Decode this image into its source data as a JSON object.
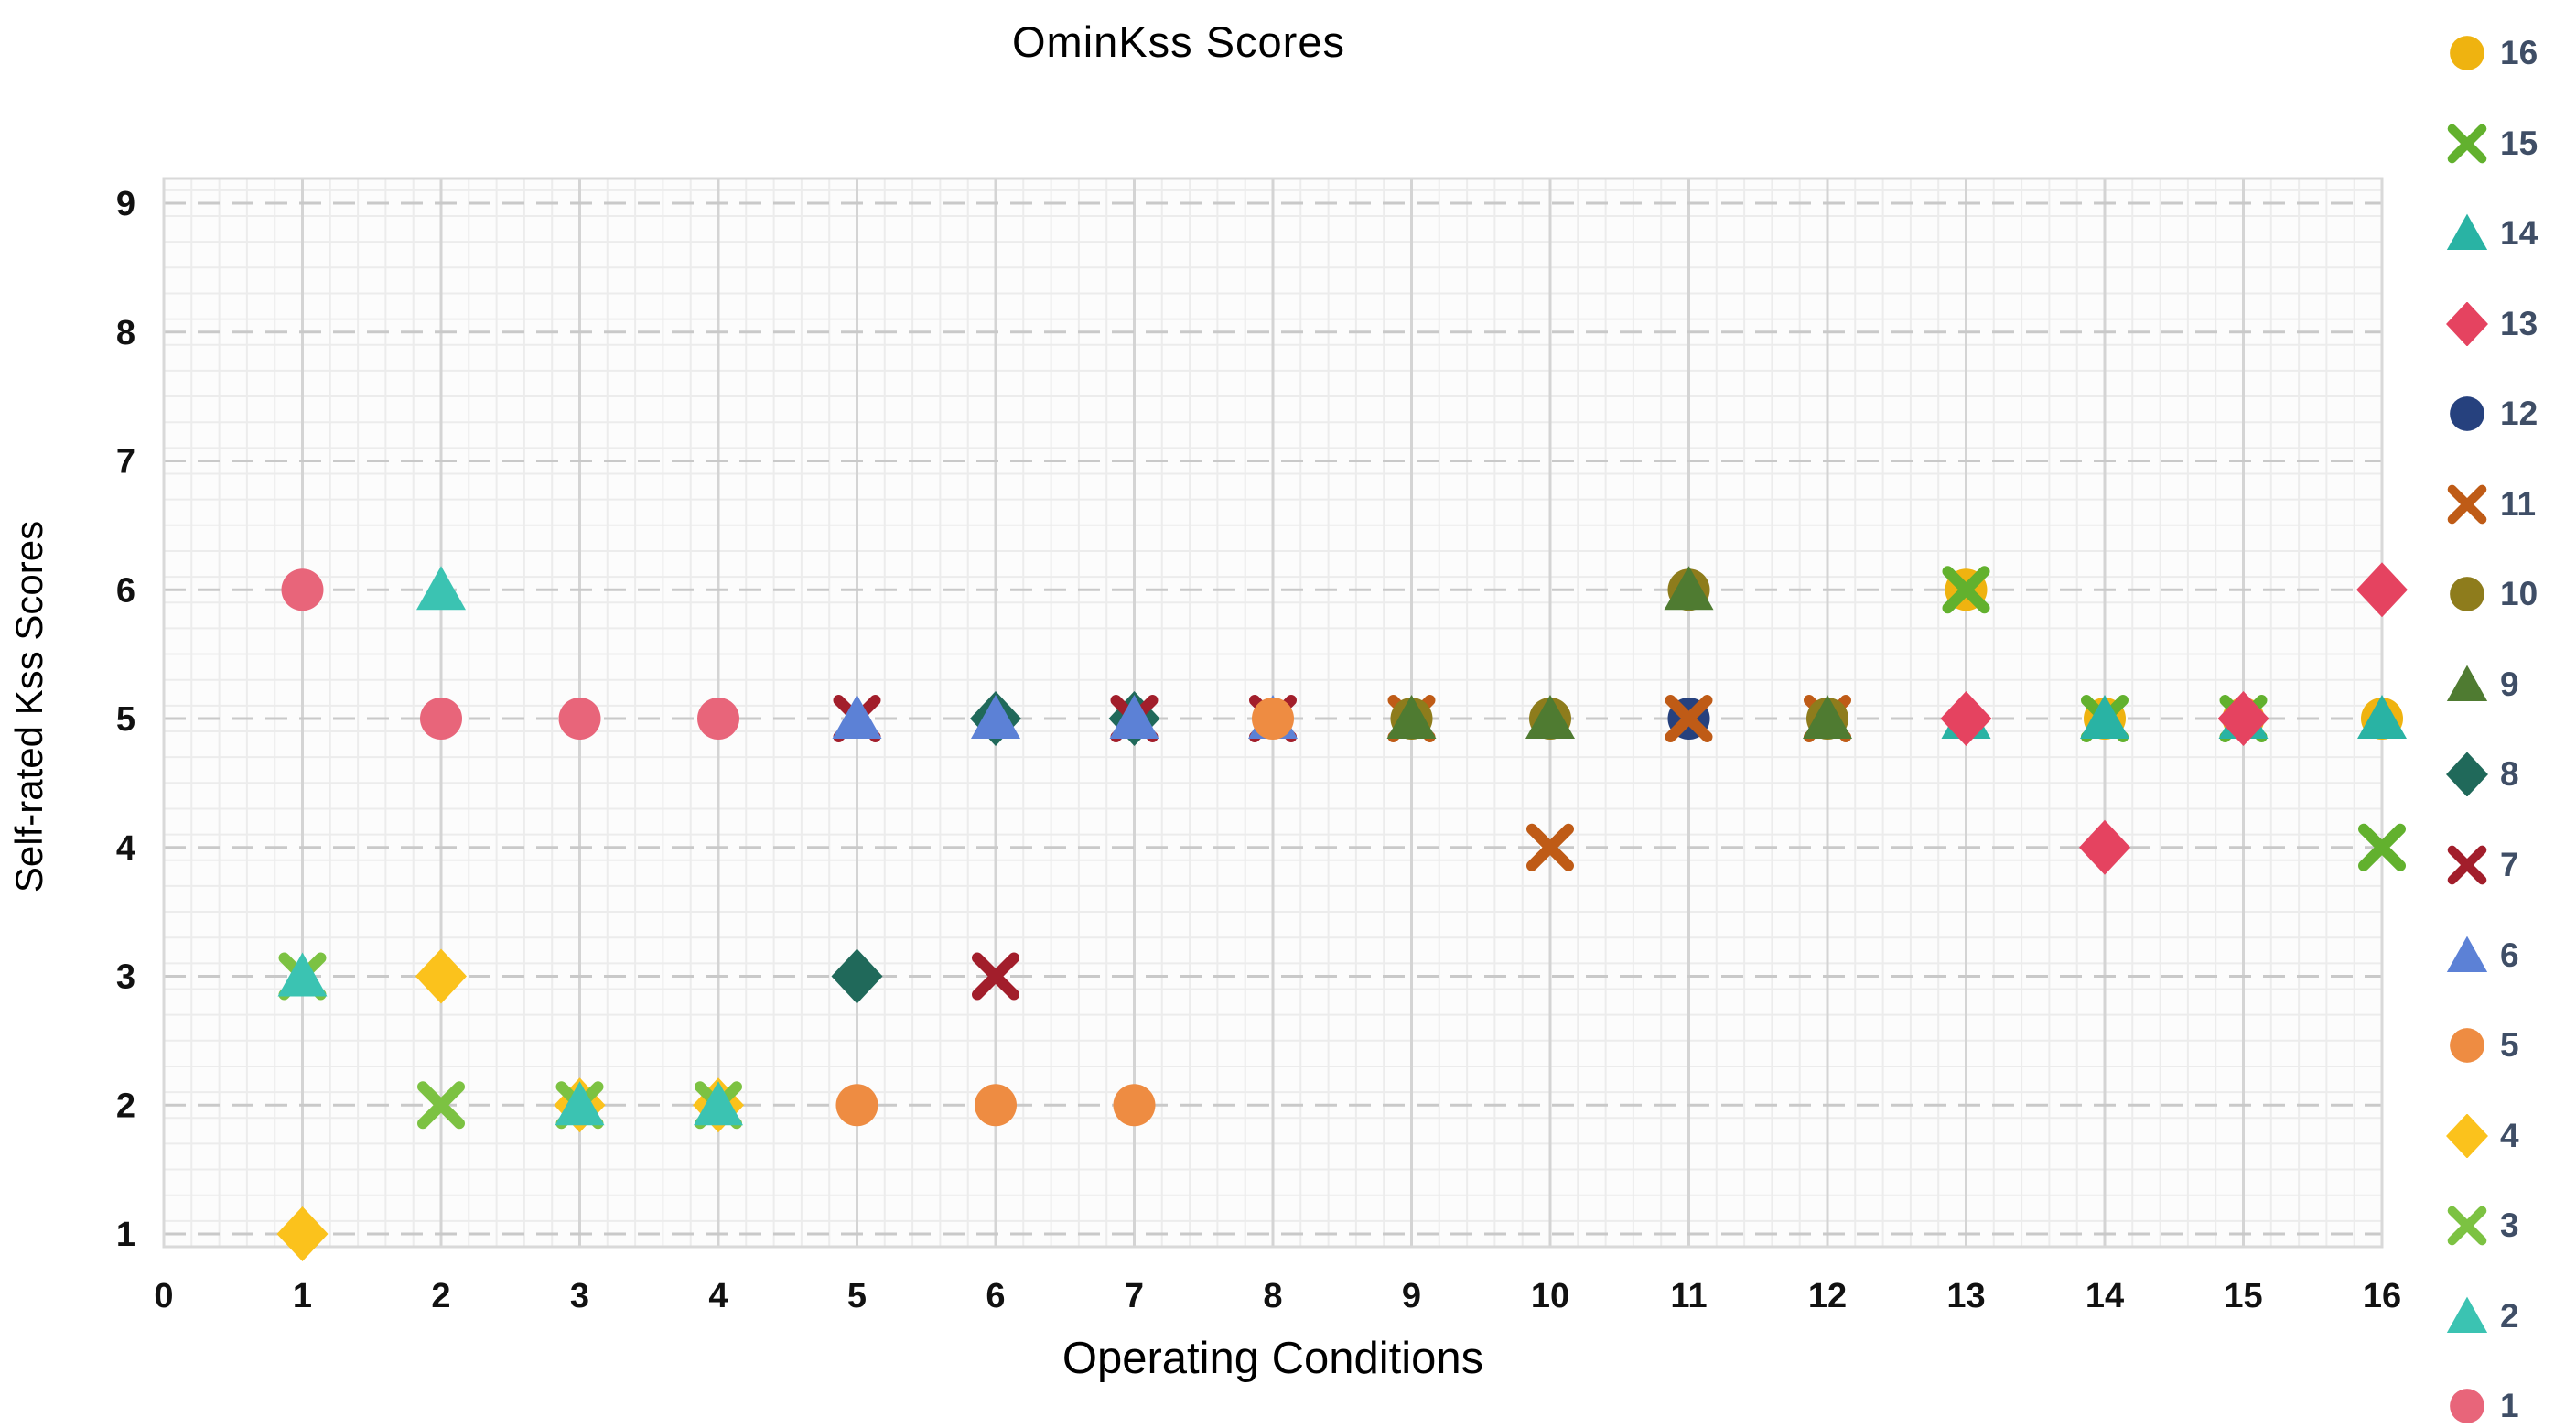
{
  "title": "OminKss Scores",
  "axes": {
    "x": {
      "label": "Operating Conditions",
      "min": 0,
      "max": 16,
      "ticks": [
        "0",
        "1",
        "2",
        "3",
        "4",
        "5",
        "6",
        "7",
        "8",
        "9",
        "10",
        "11",
        "12",
        "13",
        "14",
        "15",
        "16"
      ]
    },
    "y": {
      "label": "Self-rated Kss Scores",
      "min": 1,
      "max": 9,
      "ticks": [
        "1",
        "2",
        "3",
        "4",
        "5",
        "6",
        "7",
        "8",
        "9"
      ]
    }
  },
  "legend": {
    "order": "16 down to 1",
    "position": "right",
    "text_color": "#3F4E66"
  },
  "style": {
    "plot_bg": "#FCFCFC",
    "minor_grid": "#ECECEC",
    "major_grid_v": "#D4D4D4",
    "major_grid_h": "#C9C9C9",
    "border": "#D9D9D9",
    "tick_label_color": "#111111"
  },
  "chart_data": {
    "type": "scatter",
    "title": "OminKss Scores",
    "xlabel": "Operating Conditions",
    "ylabel": "Self-rated Kss Scores",
    "xlim": [
      0,
      16
    ],
    "ylim": [
      1,
      9
    ],
    "grid": "minor 0.2 steps; solid vertical majors; dashed horizontal majors",
    "legend_position": "right",
    "draw_order": "series 16 first, series 1 last (low numbers on top)",
    "series": [
      {
        "name": "1",
        "marker": "circle",
        "color": "#E8657A",
        "points": [
          [
            1,
            6
          ],
          [
            2,
            5
          ],
          [
            3,
            5
          ],
          [
            4,
            5
          ]
        ]
      },
      {
        "name": "2",
        "marker": "triangle",
        "color": "#3BC3B2",
        "points": [
          [
            1,
            3
          ],
          [
            2,
            6
          ],
          [
            3,
            2
          ],
          [
            4,
            2
          ]
        ]
      },
      {
        "name": "3",
        "marker": "x",
        "color": "#7CC242",
        "points": [
          [
            1,
            3
          ],
          [
            2,
            2
          ],
          [
            3,
            2
          ],
          [
            4,
            2
          ]
        ]
      },
      {
        "name": "4",
        "marker": "diamond",
        "color": "#FBC21C",
        "points": [
          [
            1,
            1
          ],
          [
            2,
            3
          ],
          [
            3,
            2
          ],
          [
            4,
            2
          ]
        ]
      },
      {
        "name": "5",
        "marker": "circle",
        "color": "#EE8C42",
        "points": [
          [
            5,
            2
          ],
          [
            6,
            2
          ],
          [
            7,
            2
          ],
          [
            8,
            5
          ]
        ]
      },
      {
        "name": "6",
        "marker": "triangle",
        "color": "#5C81D6",
        "points": [
          [
            5,
            5
          ],
          [
            6,
            5
          ],
          [
            7,
            5
          ],
          [
            8,
            5
          ]
        ]
      },
      {
        "name": "7",
        "marker": "x",
        "color": "#A21E2B",
        "points": [
          [
            5,
            5
          ],
          [
            6,
            3
          ],
          [
            7,
            5
          ],
          [
            8,
            5
          ]
        ]
      },
      {
        "name": "8",
        "marker": "diamond",
        "color": "#20695A",
        "points": [
          [
            5,
            3
          ],
          [
            6,
            5
          ],
          [
            7,
            5
          ]
        ]
      },
      {
        "name": "9",
        "marker": "triangle",
        "color": "#4F7B31",
        "points": [
          [
            9,
            5
          ],
          [
            10,
            5
          ],
          [
            11,
            6
          ],
          [
            12,
            5
          ]
        ]
      },
      {
        "name": "10",
        "marker": "circle",
        "color": "#8E7C1C",
        "points": [
          [
            9,
            5
          ],
          [
            10,
            5
          ],
          [
            11,
            6
          ],
          [
            12,
            5
          ]
        ]
      },
      {
        "name": "11",
        "marker": "x",
        "color": "#BF5B16",
        "points": [
          [
            9,
            5
          ],
          [
            10,
            4
          ],
          [
            11,
            5
          ],
          [
            12,
            5
          ]
        ]
      },
      {
        "name": "12",
        "marker": "circle",
        "color": "#26417E",
        "points": [
          [
            11,
            5
          ]
        ]
      },
      {
        "name": "13",
        "marker": "diamond",
        "color": "#E54360",
        "points": [
          [
            13,
            5
          ],
          [
            14,
            4
          ],
          [
            15,
            5
          ],
          [
            16,
            6
          ]
        ]
      },
      {
        "name": "14",
        "marker": "triangle",
        "color": "#29B3A4",
        "points": [
          [
            13,
            5
          ],
          [
            14,
            5
          ],
          [
            15,
            5
          ],
          [
            16,
            5
          ]
        ]
      },
      {
        "name": "15",
        "marker": "x",
        "color": "#62B12E",
        "points": [
          [
            13,
            6
          ],
          [
            14,
            5
          ],
          [
            15,
            5
          ],
          [
            16,
            4
          ]
        ]
      },
      {
        "name": "16",
        "marker": "circle",
        "color": "#EFB310",
        "points": [
          [
            13,
            6
          ],
          [
            14,
            5
          ],
          [
            15,
            5
          ],
          [
            16,
            5
          ]
        ]
      }
    ]
  }
}
